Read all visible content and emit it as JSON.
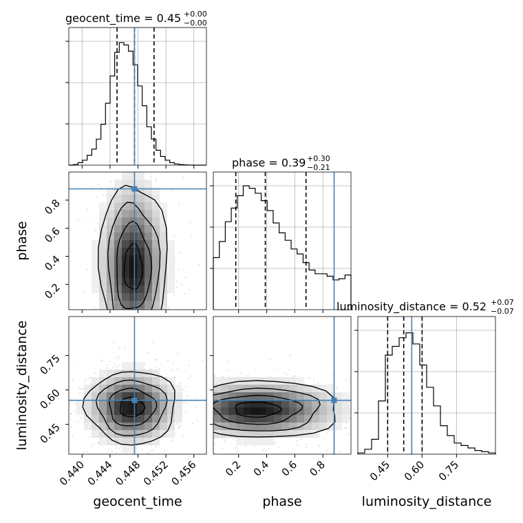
{
  "chart_data": {
    "type": "corner",
    "parameters": [
      "geocent_time",
      "phase",
      "luminosity_distance"
    ],
    "truths": {
      "geocent_time": 0.4475,
      "phase": 0.88,
      "luminosity_distance": 0.555
    },
    "summary": [
      {
        "param": "geocent_time",
        "label": "geocent_time = 0.45",
        "sup": "+0.00",
        "sub": "−0.00",
        "quantiles": [
          0.445,
          0.4475,
          0.4503
        ]
      },
      {
        "param": "phase",
        "label": "phase = 0.39",
        "sup": "+0.30",
        "sub": "−0.21",
        "quantiles": [
          0.18,
          0.39,
          0.68
        ]
      },
      {
        "param": "luminosity_distance",
        "label": "luminosity_distance = 0.52",
        "sup": "+0.07",
        "sub": "−0.07",
        "quantiles": [
          0.45,
          0.52,
          0.6
        ]
      }
    ],
    "ranges": {
      "geocent_time": [
        0.4381,
        0.4578
      ],
      "phase": [
        0.02,
        1.0
      ],
      "luminosity_distance": [
        0.32,
        0.92
      ]
    },
    "ticks": {
      "geocent_time": {
        "values": [
          0.44,
          0.444,
          0.448,
          0.452,
          0.456
        ],
        "labels": [
          "0.440",
          "0.444",
          "0.448",
          "0.452",
          "0.456"
        ]
      },
      "phase": {
        "values": [
          0.2,
          0.4,
          0.6,
          0.8
        ],
        "labels": [
          "0.2",
          "0.4",
          "0.6",
          "0.8"
        ]
      },
      "luminosity_distance": {
        "values": [
          0.45,
          0.6,
          0.75
        ],
        "labels": [
          "0.45",
          "0.60",
          "0.75"
        ]
      }
    },
    "histograms": {
      "geocent_time": [
        0,
        0.005,
        0.02,
        0.04,
        0.08,
        0.13,
        0.21,
        0.33,
        0.5,
        0.72,
        0.91,
        0.99,
        0.97,
        0.92,
        0.81,
        0.64,
        0.48,
        0.31,
        0.21,
        0.12,
        0.07,
        0.04,
        0.02,
        0.01,
        0.005,
        0.002,
        0.001,
        0,
        0,
        0
      ],
      "phase": [
        0.42,
        0.55,
        0.71,
        0.82,
        0.92,
        1.0,
        0.98,
        0.94,
        0.88,
        0.8,
        0.7,
        0.62,
        0.56,
        0.49,
        0.45,
        0.38,
        0.32,
        0.29,
        0.29,
        0.27,
        0.24,
        0.25,
        0.28
      ],
      "luminosity_distance": [
        0.01,
        0.04,
        0.12,
        0.43,
        0.8,
        0.87,
        0.94,
        0.98,
        0.89,
        0.72,
        0.54,
        0.39,
        0.23,
        0.15,
        0.09,
        0.07,
        0.05,
        0.03,
        0.02,
        0.01
      ]
    },
    "contour_panels": [
      {
        "x": "geocent_time",
        "y": "phase",
        "center": [
          0.4473,
          0.32
        ]
      },
      {
        "x": "geocent_time",
        "y": "luminosity_distance",
        "center": [
          0.4471,
          0.525
        ]
      },
      {
        "x": "phase",
        "y": "luminosity_distance",
        "center": [
          0.33,
          0.515
        ]
      }
    ],
    "colors": {
      "truth": "#4682b4",
      "line": "#000000",
      "grid": "#b0b0b0"
    }
  }
}
